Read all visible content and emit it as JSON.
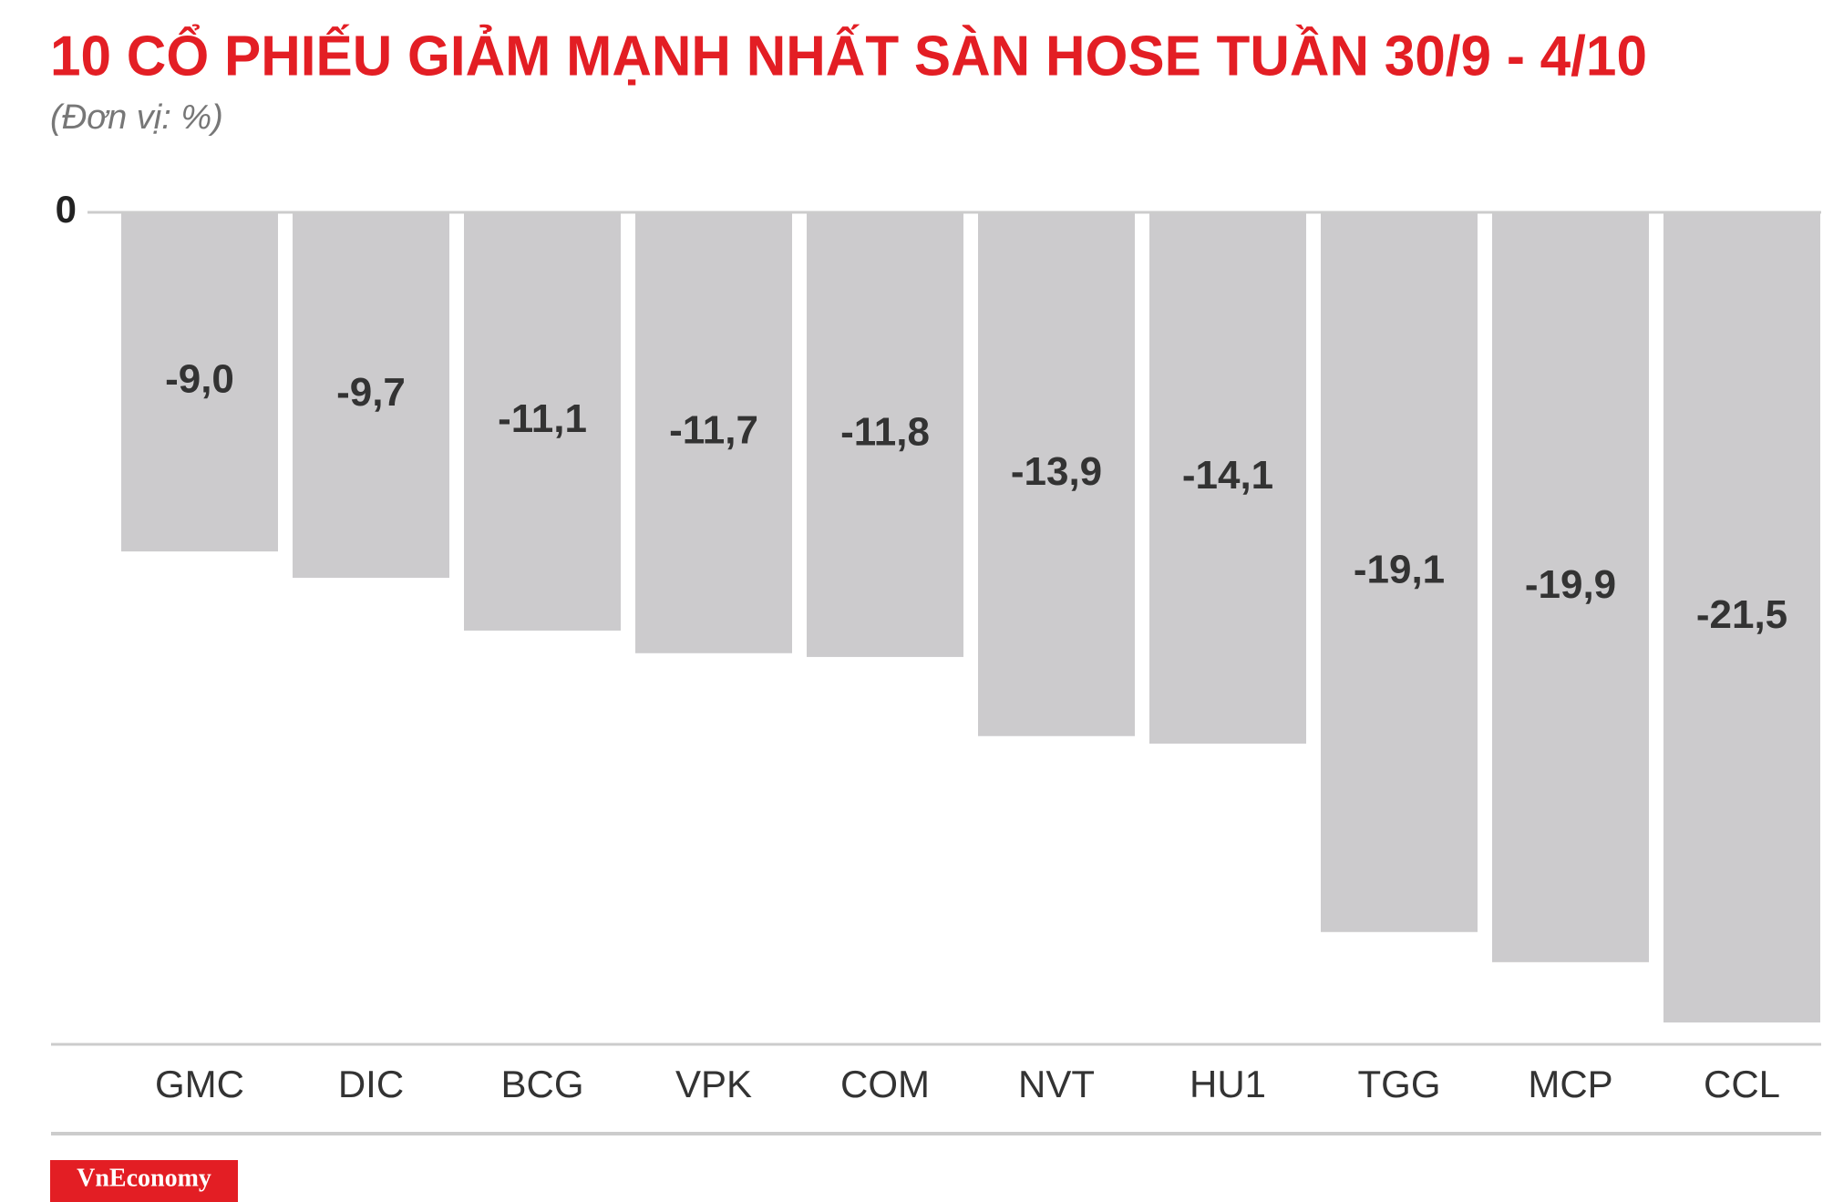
{
  "chart_data": {
    "type": "bar",
    "title": "10 CỔ PHIẾU GIẢM MẠNH NHẤT SÀN HOSE TUẦN 30/9 - 4/10",
    "subtitle": "(Đơn vị: %)",
    "categories": [
      "GMC",
      "DIC",
      "BCG",
      "VPK",
      "COM",
      "NVT",
      "HU1",
      "TGG",
      "MCP",
      "CCL"
    ],
    "values": [
      -9.0,
      -9.7,
      -11.1,
      -11.7,
      -11.8,
      -13.9,
      -14.1,
      -19.1,
      -19.9,
      -21.5
    ],
    "value_labels": [
      "-9,0",
      "-9,7",
      "-11,1",
      "-11,7",
      "-11,8",
      "-13,9",
      "-14,1",
      "-19,1",
      "-19,9",
      "-21,5"
    ],
    "color": "#cccbcd",
    "ylim": [
      -21.5,
      0
    ],
    "yticks": [
      0
    ],
    "brand": "VnEconomy"
  }
}
